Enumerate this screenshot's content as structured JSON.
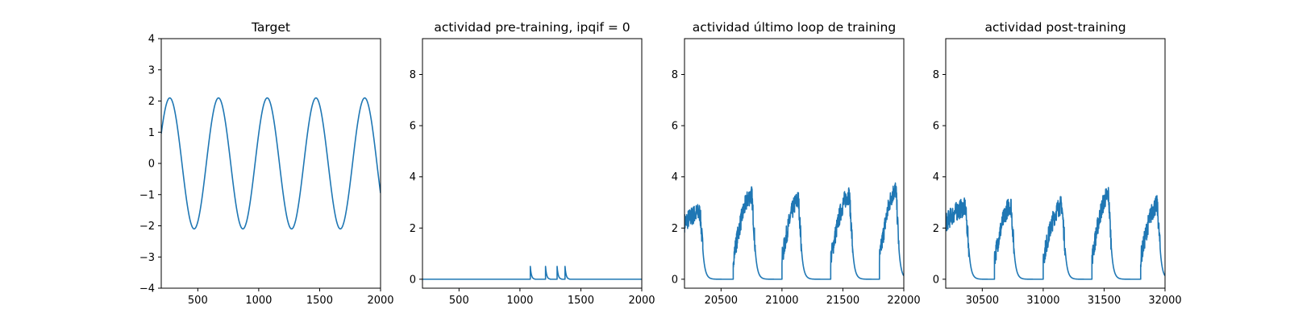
{
  "colors": {
    "series": "#1f77b4",
    "axes": "#000000",
    "background": "#ffffff"
  },
  "chart_data": [
    {
      "type": "line",
      "title": "Target",
      "xlabel": "",
      "ylabel": "",
      "xlim": [
        200,
        2000
      ],
      "ylim": [
        -4,
        4
      ],
      "xticks": [
        500,
        1000,
        1500,
        2000
      ],
      "xtick_labels": [
        "500",
        "1000",
        "1500",
        "2000"
      ],
      "yticks": [
        -4,
        -3,
        -2,
        -1,
        0,
        1,
        2,
        3,
        4
      ],
      "ytick_labels": [
        "−4",
        "−3",
        "−2",
        "−1",
        "0",
        "1",
        "2",
        "3",
        "4"
      ],
      "series": [
        {
          "name": "target",
          "kind": "sine",
          "amplitude": 2.1,
          "period": 400,
          "peaks_at": [
            270,
            670,
            1070,
            1470,
            1870
          ]
        }
      ]
    },
    {
      "type": "line",
      "title": "actividad pre-training, ipqif = 0",
      "xlabel": "",
      "ylabel": "",
      "xlim": [
        200,
        2000
      ],
      "ylim": [
        -0.35,
        9.4
      ],
      "xticks": [
        500,
        1000,
        1500,
        2000
      ],
      "xtick_labels": [
        "500",
        "1000",
        "1500",
        "2000"
      ],
      "yticks": [
        0,
        2,
        4,
        6,
        8
      ],
      "ytick_labels": [
        "0",
        "2",
        "4",
        "6",
        "8"
      ],
      "series": [
        {
          "name": "activity",
          "kind": "spikes",
          "baseline": 0,
          "spikes": [
            [
              1085,
              0.5
            ],
            [
              1210,
              0.5
            ],
            [
              1305,
              0.5
            ],
            [
              1370,
              0.5
            ]
          ]
        }
      ]
    },
    {
      "type": "line",
      "title": "actividad último loop de training",
      "xlabel": "",
      "ylabel": "",
      "xlim": [
        20200,
        22000
      ],
      "ylim": [
        -0.35,
        9.4
      ],
      "xticks": [
        20500,
        21000,
        21500,
        22000
      ],
      "xtick_labels": [
        "20500",
        "21000",
        "21500",
        "22000"
      ],
      "yticks": [
        0,
        2,
        4,
        6,
        8
      ],
      "ytick_labels": [
        "0",
        "2",
        "4",
        "6",
        "8"
      ],
      "series": [
        {
          "name": "activity",
          "kind": "bursts",
          "period": 400,
          "bursts": [
            [
              20200,
              20350,
              2.6
            ],
            [
              20600,
              20780,
              3.3
            ],
            [
              21000,
              21160,
              3.1
            ],
            [
              21400,
              21580,
              3.3
            ],
            [
              21800,
              21960,
              3.5
            ]
          ]
        }
      ]
    },
    {
      "type": "line",
      "title": "actividad post-training",
      "xlabel": "",
      "ylabel": "",
      "xlim": [
        30200,
        32000
      ],
      "ylim": [
        -0.35,
        9.4
      ],
      "xticks": [
        30500,
        31000,
        31500,
        32000
      ],
      "xtick_labels": [
        "30500",
        "31000",
        "31500",
        "32000"
      ],
      "yticks": [
        0,
        2,
        4,
        6,
        8
      ],
      "ytick_labels": [
        "0",
        "2",
        "4",
        "6",
        "8"
      ],
      "series": [
        {
          "name": "activity",
          "kind": "bursts",
          "period": 400,
          "bursts": [
            [
              30200,
              30390,
              2.8
            ],
            [
              30600,
              30760,
              2.9
            ],
            [
              31000,
              31180,
              2.9
            ],
            [
              31400,
              31560,
              3.3
            ],
            [
              31800,
              31960,
              2.9
            ]
          ]
        }
      ]
    }
  ]
}
